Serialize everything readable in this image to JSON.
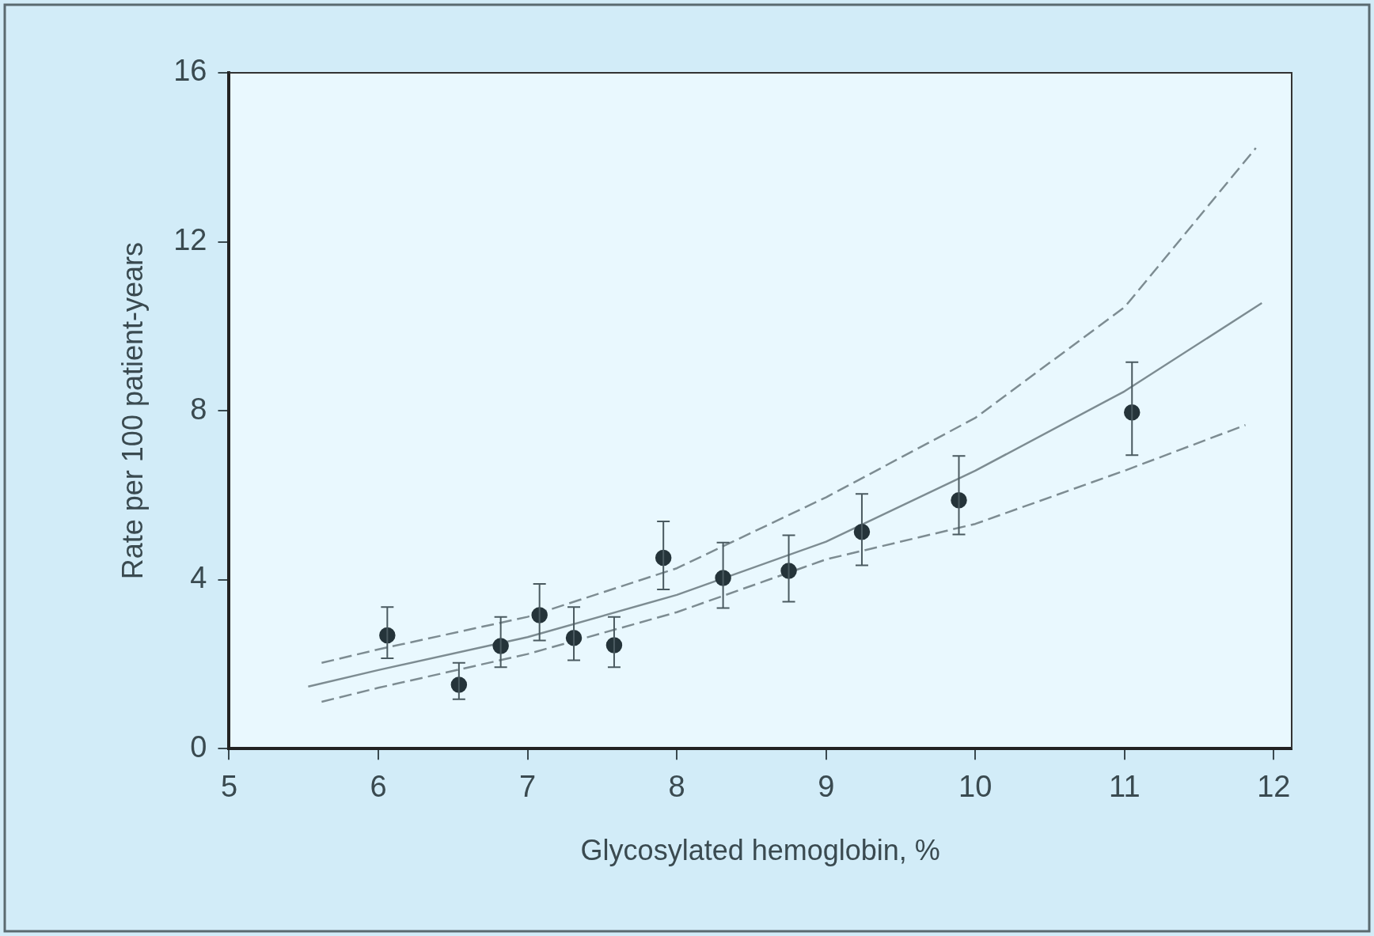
{
  "chart_data": {
    "type": "scatter",
    "xlabel": "Glycosylated hemoglobin, %",
    "ylabel": "Rate per 100 patient-years",
    "xlim": [
      5,
      12.12
    ],
    "xticks": [
      5,
      6,
      7,
      8,
      9,
      10,
      11,
      12
    ],
    "ylim": [
      0,
      16
    ],
    "yticks": [
      0,
      4,
      8,
      12,
      16
    ],
    "grid": false,
    "legend": false,
    "series": [
      {
        "type": "line",
        "color": "#7d8c92",
        "line_style": "solid",
        "marker": "none",
        "x": [
          5.53,
          6,
          7,
          8,
          9,
          10,
          11,
          11.92
        ],
        "values": [
          1.47,
          1.86,
          2.64,
          3.64,
          4.9,
          6.58,
          8.46,
          10.55
        ]
      },
      {
        "type": "line",
        "color": "#7d8c92",
        "line_style": "dashed",
        "marker": "none",
        "x": [
          5.62,
          6,
          7,
          8,
          9,
          10,
          11,
          11.88
        ],
        "values": [
          2.03,
          2.35,
          3.12,
          4.27,
          5.95,
          7.83,
          10.45,
          14.22
        ]
      },
      {
        "type": "line",
        "color": "#7d8c92",
        "line_style": "dashed",
        "marker": "none",
        "x": [
          5.62,
          6,
          7,
          8,
          9,
          10,
          11,
          11.81
        ],
        "values": [
          1.11,
          1.44,
          2.24,
          3.23,
          4.48,
          5.32,
          6.58,
          7.66
        ]
      },
      {
        "type": "scatter",
        "color": "#25343a",
        "marker": "circle",
        "x": [
          6.06,
          6.54,
          6.82,
          7.08,
          7.31,
          7.58,
          7.91,
          8.31,
          8.75,
          9.24,
          9.89,
          11.05
        ],
        "values": [
          2.68,
          1.51,
          2.43,
          3.16,
          2.62,
          2.45,
          4.52,
          4.04,
          4.21,
          5.13,
          5.88,
          7.96
        ],
        "errors": [
          [
            2.14,
            3.35
          ],
          [
            1.17,
            2.03
          ],
          [
            1.93,
            3.12
          ],
          [
            2.56,
            3.9
          ],
          [
            2.09,
            3.35
          ],
          [
            1.93,
            3.12
          ],
          [
            3.77,
            5.38
          ],
          [
            3.33,
            4.88
          ],
          [
            3.48,
            5.05
          ],
          [
            4.34,
            6.03
          ],
          [
            5.07,
            6.93
          ],
          [
            6.95,
            9.15
          ]
        ]
      }
    ]
  }
}
